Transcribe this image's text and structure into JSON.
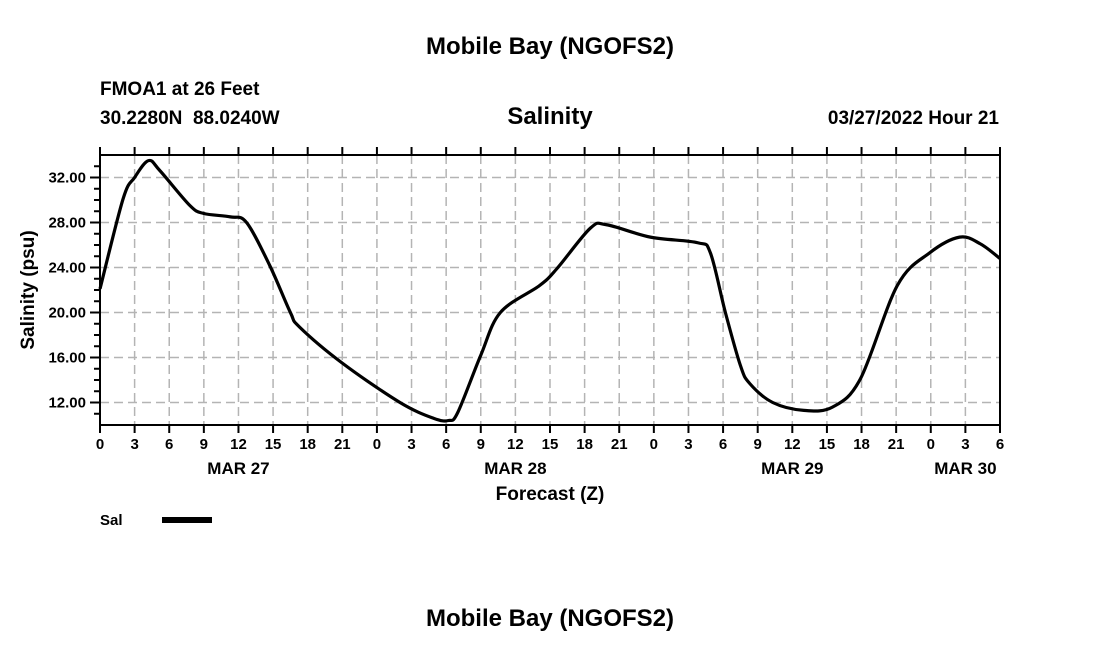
{
  "chart_data": {
    "type": "line",
    "title": "Mobile Bay (NGOFS2)",
    "footer_title": "Mobile Bay (NGOFS2)",
    "station": "FMOA1 at 26 Feet",
    "location": "30.2280N  88.0240W",
    "subtitle": "Salinity",
    "timestamp": "03/27/2022 Hour 21",
    "xlabel": "Forecast (Z)",
    "ylabel": "Salinity (psu)",
    "xlim_hours": [
      0,
      78
    ],
    "ylim": [
      10,
      34
    ],
    "grid": true,
    "y_ticks": [
      12,
      16,
      20,
      24,
      28,
      32
    ],
    "y_tick_labels": [
      "12.00",
      "16.00",
      "20.00",
      "24.00",
      "28.00",
      "32.00"
    ],
    "x_tick_labels": [
      "0",
      "3",
      "6",
      "9",
      "12",
      "15",
      "18",
      "21",
      "0",
      "3",
      "6",
      "9",
      "12",
      "15",
      "18",
      "21",
      "0",
      "3",
      "6",
      "9",
      "12",
      "15",
      "18",
      "21",
      "0",
      "3",
      "6"
    ],
    "day_labels": [
      {
        "label": "MAR 27",
        "hour": 12
      },
      {
        "label": "MAR 28",
        "hour": 36
      },
      {
        "label": "MAR 29",
        "hour": 60
      },
      {
        "label": "MAR 30",
        "hour": 75
      }
    ],
    "legend": {
      "label": "Sal",
      "color": "#000000",
      "placement": "bottom-left"
    },
    "series": [
      {
        "name": "Sal",
        "color": "#000000",
        "x": [
          0,
          2,
          3,
          4.2,
          5.2,
          7.8,
          9,
          11.3,
          12.7,
          14.7,
          16.5,
          17.3,
          21,
          26,
          28.9,
          30.2,
          31,
          33,
          34.7,
          38.1,
          39.6,
          42.5,
          43.9,
          47.7,
          51.8,
          52.9,
          54.2,
          55.5,
          56.3,
          58.3,
          61,
          63.5,
          65.9,
          69.1,
          71.9,
          74.5,
          76.3,
          78
        ],
        "y": [
          22.1,
          30.1,
          32.0,
          33.5,
          32.6,
          29.5,
          28.8,
          28.5,
          28.0,
          24.2,
          20.0,
          18.7,
          15.5,
          12.0,
          10.6,
          10.4,
          11.1,
          16.2,
          20.0,
          22.4,
          23.9,
          27.5,
          27.8,
          26.7,
          26.2,
          25.3,
          20.0,
          15.3,
          13.7,
          12.0,
          11.3,
          11.6,
          14.1,
          22.4,
          25.3,
          26.7,
          26.1,
          24.8
        ]
      }
    ]
  }
}
